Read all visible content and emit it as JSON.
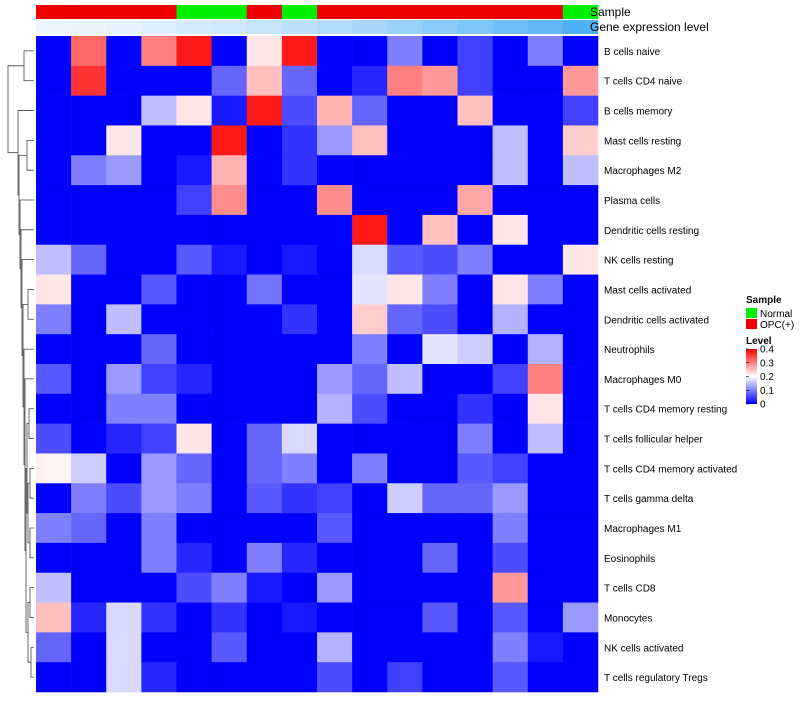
{
  "chart_data": {
    "type": "heatmap",
    "annotation_labels": [
      "Sample",
      "Gene expression level"
    ],
    "sample_groups": [
      "OPC(+)",
      "OPC(+)",
      "OPC(+)",
      "OPC(+)",
      "Normal",
      "Normal",
      "OPC(+)",
      "Normal",
      "OPC(+)",
      "OPC(+)",
      "OPC(+)",
      "OPC(+)",
      "OPC(+)",
      "OPC(+)",
      "OPC(+)",
      "Normal"
    ],
    "expression_levels": [
      0.02,
      0.05,
      0.08,
      0.12,
      0.16,
      0.2,
      0.25,
      0.3,
      0.35,
      0.42,
      0.5,
      0.58,
      0.66,
      0.74,
      0.82,
      0.92
    ],
    "rows": [
      "B cells naive",
      "T cells CD4 naive",
      "B cells memory",
      "Mast cells resting",
      "Macrophages M2",
      "Plasma cells",
      "Dendritic cells resting",
      "NK cells resting",
      "Mast cells activated",
      "Dendritic cells activated",
      "Neutrophils",
      "Macrophages M0",
      "T cells CD4 memory resting",
      "T cells follicular helper",
      "T cells CD4 memory activated",
      "T cells gamma delta",
      "Macrophages M1",
      "Eosinophils",
      "T cells CD8",
      "Monocytes",
      "NK cells activated",
      "T cells regulatory  Tregs"
    ],
    "values": [
      [
        0,
        0.32,
        0,
        0.3,
        0.38,
        0,
        0.22,
        0.38,
        0,
        0,
        0.1,
        0,
        0.05,
        0,
        0.1,
        0
      ],
      [
        0,
        0.36,
        0,
        0,
        0,
        0.08,
        0.25,
        0.08,
        0,
        0.03,
        0.3,
        0.28,
        0.05,
        0,
        0,
        0.28
      ],
      [
        0,
        0,
        0,
        0.15,
        0.22,
        0.02,
        0.38,
        0.06,
        0.26,
        0.08,
        0,
        0,
        0.25,
        0,
        0,
        0.05
      ],
      [
        0,
        0,
        0.22,
        0,
        0,
        0.38,
        0,
        0.04,
        0.12,
        0.25,
        0,
        0,
        0,
        0.15,
        0,
        0.24
      ],
      [
        0,
        0.1,
        0.12,
        0,
        0.02,
        0.26,
        0,
        0.04,
        0,
        0,
        0,
        0,
        0,
        0.15,
        0,
        0.15
      ],
      [
        0,
        0,
        0,
        0,
        0.05,
        0.29,
        0,
        0,
        0.29,
        0,
        0,
        0,
        0.27,
        0,
        0,
        0
      ],
      [
        0,
        0,
        0,
        0,
        0,
        0,
        0,
        0,
        0,
        0.38,
        0,
        0.25,
        0,
        0.22,
        0,
        0
      ],
      [
        0.15,
        0.08,
        0,
        0,
        0.07,
        0.02,
        0,
        0.02,
        0,
        0.17,
        0.07,
        0.06,
        0.1,
        0,
        0,
        0.22
      ],
      [
        0.22,
        0,
        0,
        0.07,
        0,
        0,
        0.09,
        0,
        0,
        0.18,
        0.22,
        0.1,
        0,
        0.22,
        0.1,
        0
      ],
      [
        0.1,
        0,
        0.15,
        0,
        0,
        0,
        0,
        0.04,
        0,
        0.24,
        0.08,
        0.06,
        0,
        0.14,
        0,
        0
      ],
      [
        0,
        0,
        0,
        0.08,
        0,
        0,
        0,
        0,
        0,
        0.1,
        0,
        0.18,
        0.16,
        0,
        0.14,
        0
      ],
      [
        0.07,
        0,
        0.12,
        0.05,
        0.03,
        0,
        0,
        0,
        0.12,
        0.08,
        0.15,
        0,
        0,
        0.05,
        0.3,
        0
      ],
      [
        0,
        0,
        0.1,
        0.1,
        0,
        0,
        0,
        0,
        0.14,
        0.06,
        0,
        0,
        0.04,
        0,
        0.22,
        0
      ],
      [
        0.06,
        0,
        0.03,
        0.05,
        0.22,
        0,
        0.08,
        0.17,
        0,
        0,
        0,
        0,
        0.1,
        0,
        0.15,
        0
      ],
      [
        0.21,
        0.16,
        0,
        0.12,
        0.08,
        0,
        0.08,
        0.1,
        0,
        0.1,
        0,
        0,
        0.07,
        0.05,
        0,
        0
      ],
      [
        0,
        0.1,
        0.06,
        0.12,
        0.1,
        0,
        0.07,
        0.04,
        0.05,
        0,
        0.16,
        0.08,
        0.08,
        0.12,
        0,
        0
      ],
      [
        0.1,
        0.08,
        0,
        0.1,
        0,
        0,
        0,
        0,
        0.07,
        0,
        0,
        0,
        0,
        0.1,
        0,
        0
      ],
      [
        0,
        0,
        0,
        0.1,
        0.03,
        0,
        0.1,
        0.03,
        0,
        0,
        0,
        0.08,
        0,
        0.06,
        0,
        0
      ],
      [
        0.15,
        0,
        0,
        0,
        0.06,
        0.1,
        0.02,
        0,
        0.12,
        0,
        0,
        0,
        0,
        0.28,
        0,
        0
      ],
      [
        0.25,
        0.03,
        0.17,
        0.04,
        0,
        0.04,
        0,
        0.02,
        0,
        0,
        0,
        0.07,
        0,
        0.07,
        0,
        0.12
      ],
      [
        0.08,
        0,
        0.17,
        0,
        0,
        0.07,
        0,
        0,
        0.14,
        0,
        0,
        0,
        0,
        0.1,
        0.02,
        0
      ],
      [
        0,
        0,
        0.17,
        0.03,
        0,
        0,
        0,
        0,
        0.06,
        0,
        0.05,
        0,
        0,
        0.07,
        0,
        0
      ]
    ],
    "legend": {
      "sample_title": "Sample",
      "sample_entries": [
        {
          "label": "Normal",
          "color": "#00ee00"
        },
        {
          "label": "OPC(+)",
          "color": "#ee0000"
        }
      ],
      "level_title": "Level",
      "level_ticks": [
        "0.4",
        "0.3",
        "0.2",
        "0.1",
        "0"
      ],
      "level_range": [
        0,
        0.4
      ]
    },
    "colors": {
      "low": "#0000ff",
      "mid": "#ffffff",
      "high": "#ff0000",
      "normal": "#00ee00",
      "opc": "#ee0000",
      "gene_low": "#f2f8fd",
      "gene_high": "#42aaf5"
    }
  }
}
